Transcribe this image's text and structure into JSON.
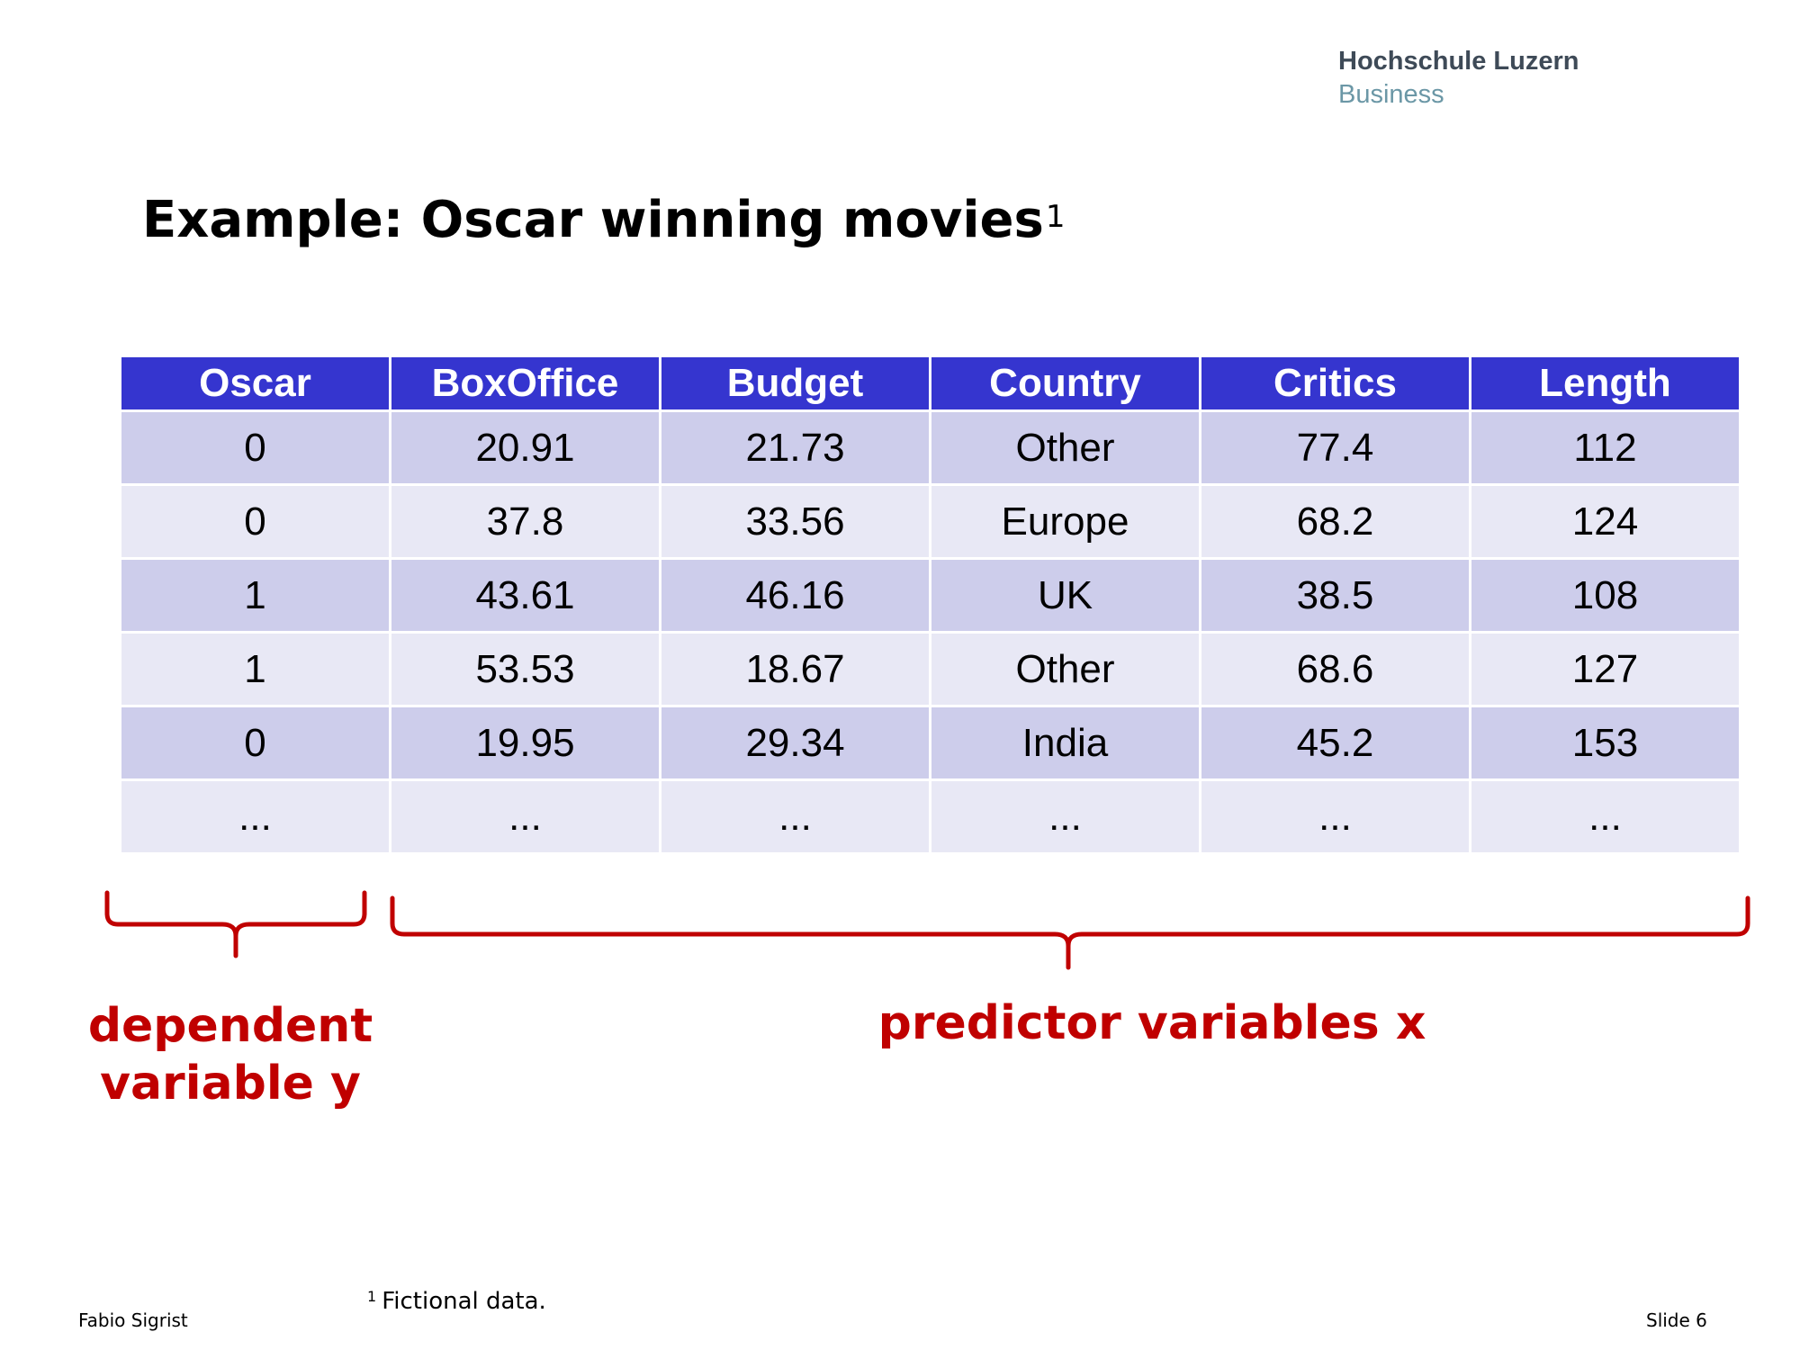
{
  "logo": {
    "line1": "Hochschule Luzern",
    "line2": "Business"
  },
  "title": {
    "text": "Example: Oscar winning movies",
    "footnote_mark": "1"
  },
  "table": {
    "headers": [
      "Oscar",
      "BoxOffice",
      "Budget",
      "Country",
      "Critics",
      "Length"
    ],
    "rows": [
      [
        "0",
        "20.91",
        "21.73",
        "Other",
        "77.4",
        "112"
      ],
      [
        "0",
        "37.8",
        "33.56",
        "Europe",
        "68.2",
        "124"
      ],
      [
        "1",
        "43.61",
        "46.16",
        "UK",
        "38.5",
        "108"
      ],
      [
        "1",
        "53.53",
        "18.67",
        "Other",
        "68.6",
        "127"
      ],
      [
        "0",
        "19.95",
        "29.34",
        "India",
        "45.2",
        "153"
      ],
      [
        "...",
        "...",
        "...",
        "...",
        "...",
        "..."
      ]
    ]
  },
  "annotations": {
    "dependent": {
      "line1": "dependent",
      "line2": "variable y"
    },
    "predictor": "predictor variables x"
  },
  "footnote": {
    "mark": "1",
    "text": "Fictional data."
  },
  "footer": {
    "author": "Fabio Sigrist",
    "slide": "Slide 6"
  },
  "colors": {
    "header_bg": "#3535cf",
    "row_odd_bg": "#cdcdeb",
    "row_even_bg": "#e8e8f5",
    "annotation_red": "#c00000",
    "logo_dark": "#3e4a57",
    "logo_light": "#6b97a6"
  }
}
